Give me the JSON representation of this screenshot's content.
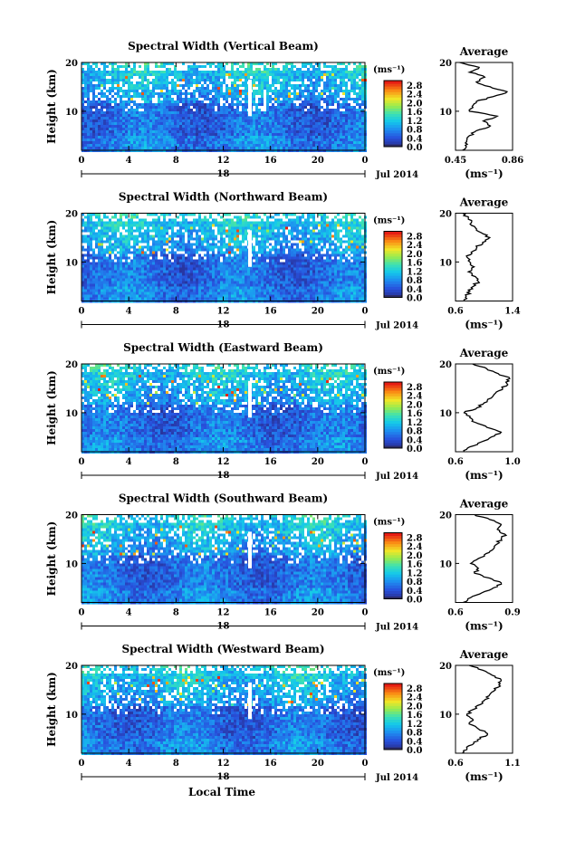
{
  "figure": {
    "xlabel": "Local Time",
    "date_label": "Jul 2014",
    "day_label": "18",
    "colorbar_unit": "(ms⁻¹)",
    "avg_title": "Average",
    "avg_xlabel": "(ms⁻¹)"
  },
  "chart_data": [
    {
      "type": "heatmap",
      "title": "Spectral Width (Vertical Beam)",
      "ylabel": "Height (km)",
      "xlim": [
        0,
        24
      ],
      "ylim": [
        2,
        20
      ],
      "xticks": [
        "0",
        "4",
        "8",
        "12",
        "16",
        "20",
        "0"
      ],
      "yticks": [
        "10",
        "20"
      ],
      "colorbar": {
        "ticks": [
          "0.0",
          "0.4",
          "0.8",
          "1.2",
          "1.6",
          "2.0",
          "2.4",
          "2.8"
        ],
        "range": [
          0,
          3.0
        ]
      },
      "average_profile": {
        "xlim": [
          0.45,
          0.86
        ],
        "xticks": [
          "0.45",
          "0.86"
        ],
        "height": [
          2,
          3,
          4,
          5,
          6,
          7,
          8,
          9,
          10,
          11,
          12,
          13,
          14,
          15,
          16,
          17,
          18,
          19,
          20
        ],
        "value": [
          0.5,
          0.52,
          0.53,
          0.55,
          0.6,
          0.7,
          0.65,
          0.75,
          0.55,
          0.57,
          0.6,
          0.72,
          0.82,
          0.7,
          0.6,
          0.66,
          0.55,
          0.62,
          0.48
        ]
      }
    },
    {
      "type": "heatmap",
      "title": "Spectral Width (Northward Beam)",
      "ylabel": "Height (km)",
      "xlim": [
        0,
        24
      ],
      "ylim": [
        2,
        20
      ],
      "xticks": [
        "0",
        "4",
        "8",
        "12",
        "16",
        "20",
        "0"
      ],
      "yticks": [
        "10",
        "20"
      ],
      "colorbar": {
        "ticks": [
          "0.0",
          "0.4",
          "0.8",
          "1.2",
          "1.6",
          "2.0",
          "2.4",
          "2.8"
        ],
        "range": [
          0,
          3.0
        ]
      },
      "average_profile": {
        "xlim": [
          0.6,
          1.4
        ],
        "xticks": [
          "0.6",
          "1.4"
        ],
        "height": [
          2,
          3,
          4,
          5,
          6,
          7,
          8,
          9,
          10,
          11,
          12,
          13,
          14,
          15,
          16,
          17,
          18,
          19,
          20
        ],
        "value": [
          0.72,
          0.75,
          0.8,
          0.85,
          0.92,
          0.88,
          0.78,
          0.86,
          0.8,
          0.76,
          0.82,
          0.9,
          0.98,
          1.08,
          0.96,
          0.88,
          0.82,
          0.78,
          0.7
        ]
      }
    },
    {
      "type": "heatmap",
      "title": "Spectral Width (Eastward Beam)",
      "ylabel": "Height (km)",
      "xlim": [
        0,
        24
      ],
      "ylim": [
        2,
        20
      ],
      "xticks": [
        "0",
        "4",
        "8",
        "12",
        "16",
        "20",
        "0"
      ],
      "yticks": [
        "10",
        "20"
      ],
      "colorbar": {
        "ticks": [
          "0.0",
          "0.4",
          "0.8",
          "1.2",
          "1.6",
          "2.0",
          "2.4",
          "2.8"
        ],
        "range": [
          0,
          3.0
        ]
      },
      "average_profile": {
        "xlim": [
          0.6,
          1.0
        ],
        "xticks": [
          "0.6",
          "1.0"
        ],
        "height": [
          2,
          3,
          4,
          5,
          6,
          7,
          8,
          9,
          10,
          11,
          12,
          13,
          14,
          15,
          16,
          17,
          18,
          19,
          20
        ],
        "value": [
          0.66,
          0.7,
          0.78,
          0.85,
          0.92,
          0.82,
          0.74,
          0.7,
          0.66,
          0.75,
          0.8,
          0.85,
          0.88,
          0.93,
          0.96,
          0.98,
          0.9,
          0.82,
          0.72
        ]
      }
    },
    {
      "type": "heatmap",
      "title": "Spectral Width (Southward Beam)",
      "ylabel": "Height (km)",
      "xlim": [
        0,
        24
      ],
      "ylim": [
        2,
        20
      ],
      "xticks": [
        "0",
        "4",
        "8",
        "12",
        "16",
        "20",
        "0"
      ],
      "yticks": [
        "10",
        "20"
      ],
      "colorbar": {
        "ticks": [
          "0.0",
          "0.4",
          "0.8",
          "1.2",
          "1.6",
          "2.0",
          "2.4",
          "2.8"
        ],
        "range": [
          0,
          3.0
        ]
      },
      "average_profile": {
        "xlim": [
          0.6,
          0.9
        ],
        "xticks": [
          "0.6",
          "0.9"
        ],
        "height": [
          2,
          3,
          4,
          5,
          6,
          7,
          8,
          9,
          10,
          11,
          12,
          13,
          14,
          15,
          16,
          17,
          18,
          19,
          20
        ],
        "value": [
          0.64,
          0.68,
          0.74,
          0.8,
          0.84,
          0.78,
          0.7,
          0.72,
          0.68,
          0.72,
          0.76,
          0.8,
          0.82,
          0.84,
          0.86,
          0.82,
          0.84,
          0.78,
          0.7
        ]
      }
    },
    {
      "type": "heatmap",
      "title": "Spectral Width (Westward Beam)",
      "ylabel": "Height (km)",
      "xlim": [
        0,
        24
      ],
      "ylim": [
        2,
        20
      ],
      "xticks": [
        "0",
        "4",
        "8",
        "12",
        "16",
        "20",
        "0"
      ],
      "yticks": [
        "10",
        "20"
      ],
      "colorbar": {
        "ticks": [
          "0.0",
          "0.4",
          "0.8",
          "1.2",
          "1.6",
          "2.0",
          "2.4",
          "2.8"
        ],
        "range": [
          0,
          3.0
        ]
      },
      "average_profile": {
        "xlim": [
          0.6,
          1.1
        ],
        "xticks": [
          "0.6",
          "1.1"
        ],
        "height": [
          2,
          3,
          4,
          5,
          6,
          7,
          8,
          9,
          10,
          11,
          12,
          13,
          14,
          15,
          16,
          17,
          18,
          19,
          20
        ],
        "value": [
          0.66,
          0.7,
          0.76,
          0.82,
          0.88,
          0.8,
          0.72,
          0.75,
          0.7,
          0.76,
          0.82,
          0.86,
          0.9,
          0.95,
          0.98,
          1.0,
          0.92,
          0.84,
          0.72
        ]
      }
    }
  ]
}
